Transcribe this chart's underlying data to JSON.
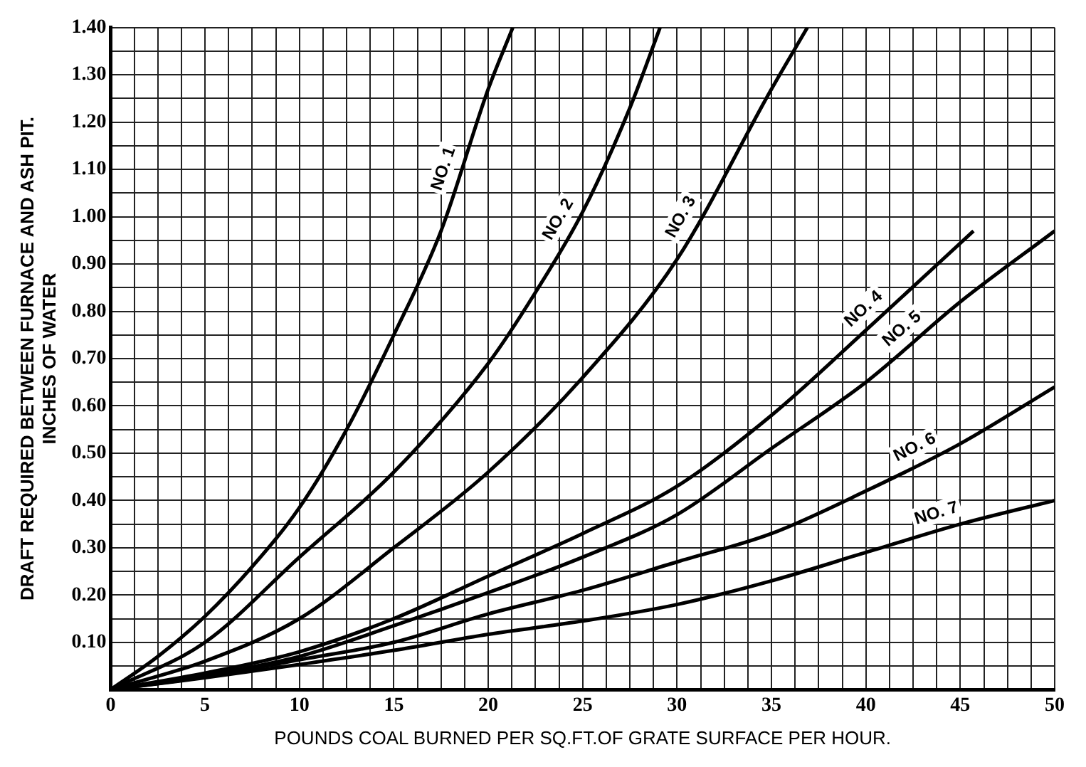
{
  "chart_data": {
    "type": "line",
    "xlabel": "POUNDS COAL BURNED PER SQ.FT.OF GRATE SURFACE PER HOUR.",
    "ylabel": "DRAFT REQUIRED BETWEEN FURNACE AND ASH PIT.\nINCHES OF WATER",
    "xlim": [
      0,
      50
    ],
    "ylim": [
      0,
      1.4
    ],
    "xticks": [
      0,
      {
        "value": 1.25,
        "label": null
      },
      {
        "value": 2.5,
        "label": null
      },
      {
        "value": 3.75,
        "label": null
      },
      5,
      {
        "value": 6.25,
        "label": null
      },
      {
        "value": 7.5,
        "label": null
      },
      {
        "value": 8.75,
        "label": null
      },
      10,
      {
        "value": 11.25,
        "label": null
      },
      {
        "value": 12.5,
        "label": null
      },
      {
        "value": 13.75,
        "label": null
      },
      15,
      {
        "value": 16.25,
        "label": null
      },
      {
        "value": 17.5,
        "label": null
      },
      {
        "value": 18.75,
        "label": null
      },
      20,
      {
        "value": 21.25,
        "label": null
      },
      {
        "value": 22.5,
        "label": null
      },
      {
        "value": 23.75,
        "label": null
      },
      25,
      {
        "value": 26.25,
        "label": null
      },
      {
        "value": 27.5,
        "label": null
      },
      {
        "value": 28.75,
        "label": null
      },
      30,
      {
        "value": 31.25,
        "label": null
      },
      {
        "value": 32.5,
        "label": null
      },
      {
        "value": 33.75,
        "label": null
      },
      35,
      {
        "value": 36.25,
        "label": null
      },
      {
        "value": 37.5,
        "label": null
      },
      {
        "value": 38.75,
        "label": null
      },
      40,
      {
        "value": 41.25,
        "label": null
      },
      {
        "value": 42.5,
        "label": null
      },
      {
        "value": 43.75,
        "label": null
      },
      45,
      {
        "value": 46.25,
        "label": null
      },
      {
        "value": 47.5,
        "label": null
      },
      {
        "value": 48.75,
        "label": null
      },
      50
    ],
    "yticks": [
      {
        "value": 0,
        "label": null
      },
      {
        "value": 0.05,
        "label": null
      },
      {
        "value": 0.1,
        "label": "0.10"
      },
      {
        "value": 0.15,
        "label": null
      },
      {
        "value": 0.2,
        "label": "0.20"
      },
      {
        "value": 0.25,
        "label": null
      },
      {
        "value": 0.3,
        "label": "0.30"
      },
      {
        "value": 0.35,
        "label": null
      },
      {
        "value": 0.4,
        "label": "0.40"
      },
      {
        "value": 0.45,
        "label": null
      },
      {
        "value": 0.5,
        "label": "0.50"
      },
      {
        "value": 0.55,
        "label": null
      },
      {
        "value": 0.6,
        "label": "0.60"
      },
      {
        "value": 0.65,
        "label": null
      },
      {
        "value": 0.7,
        "label": "0.70"
      },
      {
        "value": 0.75,
        "label": null
      },
      {
        "value": 0.8,
        "label": "0.80"
      },
      {
        "value": 0.85,
        "label": null
      },
      {
        "value": 0.9,
        "label": "0.90"
      },
      {
        "value": 0.95,
        "label": null
      },
      {
        "value": 1.0,
        "label": "1.00"
      },
      {
        "value": 1.05,
        "label": null
      },
      {
        "value": 1.1,
        "label": "1.10"
      },
      {
        "value": 1.15,
        "label": null
      },
      {
        "value": 1.2,
        "label": "1.20"
      },
      {
        "value": 1.25,
        "label": null
      },
      {
        "value": 1.3,
        "label": "1.30"
      },
      {
        "value": 1.35,
        "label": null
      },
      {
        "value": 1.4,
        "label": "1.40"
      }
    ],
    "grid": true,
    "legend": false,
    "marker": "none",
    "line_style": "solid",
    "series": [
      {
        "name": "NO. 1",
        "color": "#000000",
        "x": [
          0,
          2.5,
          5,
          7.5,
          10,
          12.5,
          15,
          17.5,
          20,
          21.3
        ],
        "values": [
          0,
          0.07,
          0.155,
          0.26,
          0.385,
          0.55,
          0.75,
          0.97,
          1.27,
          1.4
        ]
      },
      {
        "name": "NO. 2",
        "color": "#000000",
        "x": [
          0,
          5,
          10,
          15,
          20,
          22.5,
          25,
          27.5,
          29.1
        ],
        "values": [
          0,
          0.1,
          0.28,
          0.46,
          0.69,
          0.84,
          1.01,
          1.23,
          1.4
        ]
      },
      {
        "name": "NO. 3",
        "color": "#000000",
        "x": [
          0,
          5,
          10,
          15,
          20,
          25,
          30,
          35,
          36.9
        ],
        "values": [
          0,
          0.06,
          0.15,
          0.3,
          0.46,
          0.66,
          0.91,
          1.27,
          1.4
        ]
      },
      {
        "name": "NO. 4",
        "color": "#000000",
        "x": [
          0,
          5,
          10,
          15,
          20,
          25,
          30,
          35,
          40,
          45.7
        ],
        "values": [
          0,
          0.035,
          0.08,
          0.15,
          0.24,
          0.33,
          0.43,
          0.58,
          0.76,
          0.97
        ]
      },
      {
        "name": "NO. 5",
        "color": "#000000",
        "x": [
          0,
          5,
          10,
          15,
          20,
          25,
          30,
          35,
          40,
          45,
          50
        ],
        "values": [
          0,
          0.03,
          0.07,
          0.135,
          0.205,
          0.28,
          0.37,
          0.51,
          0.65,
          0.82,
          0.97
        ]
      },
      {
        "name": "NO. 6",
        "color": "#000000",
        "x": [
          0,
          5,
          10,
          15,
          20,
          25,
          30,
          35,
          40,
          45,
          50
        ],
        "values": [
          0,
          0.027,
          0.063,
          0.1,
          0.16,
          0.21,
          0.27,
          0.33,
          0.42,
          0.52,
          0.64
        ]
      },
      {
        "name": "NO. 7",
        "color": "#000000",
        "x": [
          0,
          5,
          10,
          15,
          20,
          25,
          30,
          35,
          40,
          45,
          50
        ],
        "values": [
          0,
          0.025,
          0.053,
          0.083,
          0.117,
          0.145,
          0.18,
          0.23,
          0.29,
          0.35,
          0.4
        ]
      }
    ]
  }
}
